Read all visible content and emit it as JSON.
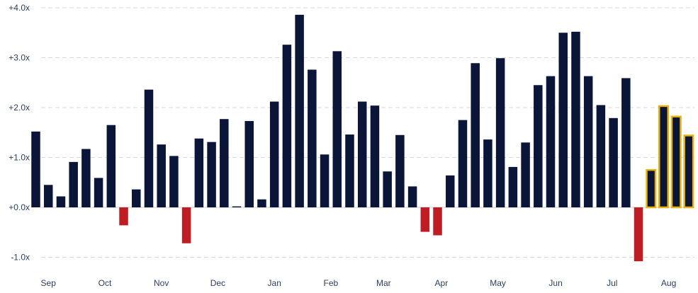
{
  "chart_data": {
    "type": "bar",
    "title": "",
    "xlabel": "",
    "ylabel": "",
    "ylim": [
      -1.1,
      4.0
    ],
    "y_ticks": [
      {
        "value": 4,
        "label": "+4.0x"
      },
      {
        "value": 3,
        "label": "+3.0x"
      },
      {
        "value": 2,
        "label": "+2.0x"
      },
      {
        "value": 1,
        "label": "+1.0x"
      },
      {
        "value": 0,
        "label": "+0.0x"
      },
      {
        "value": -1,
        "label": "-1.0x"
      }
    ],
    "x_month_labels": [
      {
        "label": "Sep",
        "bar_index": 1
      },
      {
        "label": "Oct",
        "bar_index": 5.5
      },
      {
        "label": "Nov",
        "bar_index": 10
      },
      {
        "label": "Dec",
        "bar_index": 14.5
      },
      {
        "label": "Jan",
        "bar_index": 19
      },
      {
        "label": "Feb",
        "bar_index": 23.5
      },
      {
        "label": "Mar",
        "bar_index": 27.7
      },
      {
        "label": "Apr",
        "bar_index": 32.3
      },
      {
        "label": "May",
        "bar_index": 36.8
      },
      {
        "label": "Jun",
        "bar_index": 41.4
      },
      {
        "label": "Jul",
        "bar_index": 45.9
      },
      {
        "label": "Aug",
        "bar_index": 50.4
      }
    ],
    "colors": {
      "positive": "#0b1538",
      "negative": "#bf1c23",
      "highlight_border": "#e8b20e"
    },
    "values": [
      1.52,
      0.45,
      0.22,
      0.91,
      1.17,
      0.59,
      1.65,
      -0.36,
      0.36,
      2.36,
      1.26,
      1.03,
      -0.72,
      1.38,
      1.31,
      1.77,
      0.02,
      1.73,
      0.16,
      2.12,
      3.26,
      3.86,
      2.76,
      1.06,
      3.13,
      1.46,
      2.12,
      2.04,
      0.72,
      1.45,
      0.42,
      -0.49,
      -0.56,
      0.64,
      1.75,
      2.89,
      1.36,
      2.99,
      0.81,
      1.3,
      2.45,
      2.63,
      3.5,
      3.52,
      2.63,
      2.05,
      1.79,
      2.59,
      -1.08,
      0.75,
      2.03,
      1.82,
      1.44
    ],
    "highlighted_indices": [
      49,
      50,
      51,
      52
    ]
  }
}
